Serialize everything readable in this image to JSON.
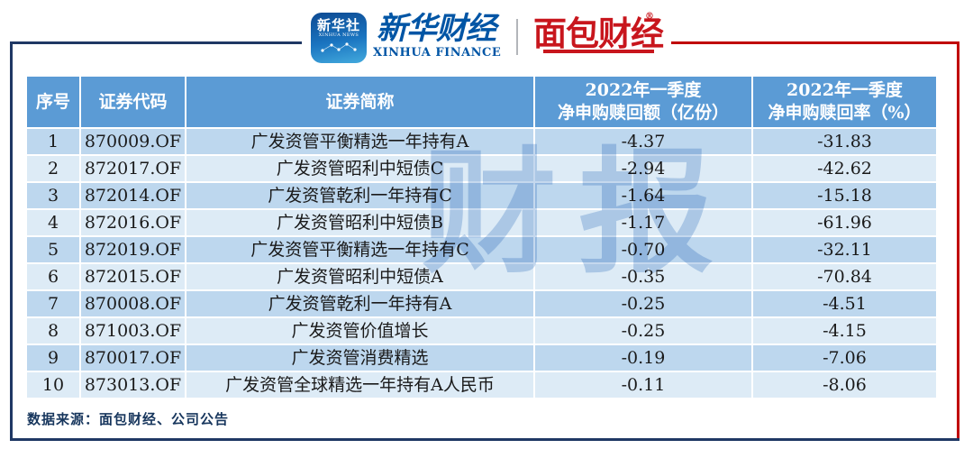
{
  "brand_bar": {
    "xinhua_icon": {
      "cn": "新华社",
      "en": "XINHUA NEWS"
    },
    "xinhua_finance": {
      "cn": "新华财经",
      "en": "XINHUA FINANCE"
    },
    "mianbao_finance": {
      "cn": "面包财经",
      "reg": "®"
    }
  },
  "table_header": {
    "col_no": "序号",
    "col_code": "证券代码",
    "col_name": "证券简称",
    "col_amount_line1": "2022年一季度",
    "col_amount_line2": "净申购赎回额（亿份）",
    "col_rate_line1": "2022年一季度",
    "col_rate_line2": "净申购赎回率（%）"
  },
  "chart_data": {
    "type": "table",
    "columns": [
      "序号",
      "证券代码",
      "证券简称",
      "2022年一季度净申购赎回额（亿份）",
      "2022年一季度净申购赎回率（%）"
    ],
    "rows": [
      {
        "no": "1",
        "code": "870009.OF",
        "name": "广发资管平衡精选一年持有A",
        "amount": "-4.37",
        "rate": "-31.83"
      },
      {
        "no": "2",
        "code": "872017.OF",
        "name": "广发资管昭利中短债C",
        "amount": "-2.94",
        "rate": "-42.62"
      },
      {
        "no": "3",
        "code": "872014.OF",
        "name": "广发资管乾利一年持有C",
        "amount": "-1.64",
        "rate": "-15.18"
      },
      {
        "no": "4",
        "code": "872016.OF",
        "name": "广发资管昭利中短债B",
        "amount": "-1.17",
        "rate": "-61.96"
      },
      {
        "no": "5",
        "code": "872019.OF",
        "name": "广发资管平衡精选一年持有C",
        "amount": "-0.70",
        "rate": "-32.11"
      },
      {
        "no": "6",
        "code": "872015.OF",
        "name": "广发资管昭利中短债A",
        "amount": "-0.35",
        "rate": "-70.84"
      },
      {
        "no": "7",
        "code": "870008.OF",
        "name": "广发资管乾利一年持有A",
        "amount": "-0.25",
        "rate": "-4.51"
      },
      {
        "no": "8",
        "code": "871003.OF",
        "name": "广发资管价值增长",
        "amount": "-0.25",
        "rate": "-4.15"
      },
      {
        "no": "9",
        "code": "870017.OF",
        "name": "广发资管消费精选",
        "amount": "-0.19",
        "rate": "-7.06"
      },
      {
        "no": "10",
        "code": "873013.OF",
        "name": "广发资管全球精选一年持有A人民币",
        "amount": "-0.11",
        "rate": "-8.06"
      }
    ]
  },
  "watermark": "财报",
  "footer": {
    "source": "数据来源：面包财经、公司公告"
  },
  "colors": {
    "header_blue": "#5B9BD5",
    "row_odd": "#BDD7EE",
    "row_even": "#DDEBF6",
    "frame_navy": "#1F3864",
    "frame_red": "#C00000",
    "brand_blue": "#0055A5",
    "brand_red": "#C8161D"
  }
}
